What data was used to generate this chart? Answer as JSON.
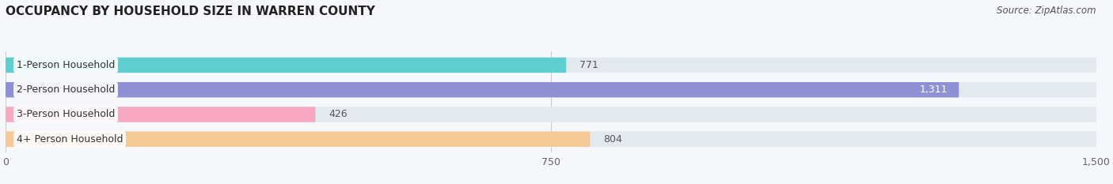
{
  "title": "OCCUPANCY BY HOUSEHOLD SIZE IN WARREN COUNTY",
  "source": "Source: ZipAtlas.com",
  "categories": [
    "1-Person Household",
    "2-Person Household",
    "3-Person Household",
    "4+ Person Household"
  ],
  "values": [
    771,
    1311,
    426,
    804
  ],
  "bar_colors": [
    "#5ecece",
    "#8f8fd4",
    "#f5a8c0",
    "#f5c896"
  ],
  "bar_bg_color": "#e4e9f0",
  "xlim": [
    0,
    1500
  ],
  "xticks": [
    0,
    750,
    1500
  ],
  "title_fontsize": 11,
  "source_fontsize": 8.5,
  "tick_fontsize": 9,
  "bar_label_fontsize": 9,
  "cat_label_fontsize": 9,
  "background_color": "#f5f7fa"
}
